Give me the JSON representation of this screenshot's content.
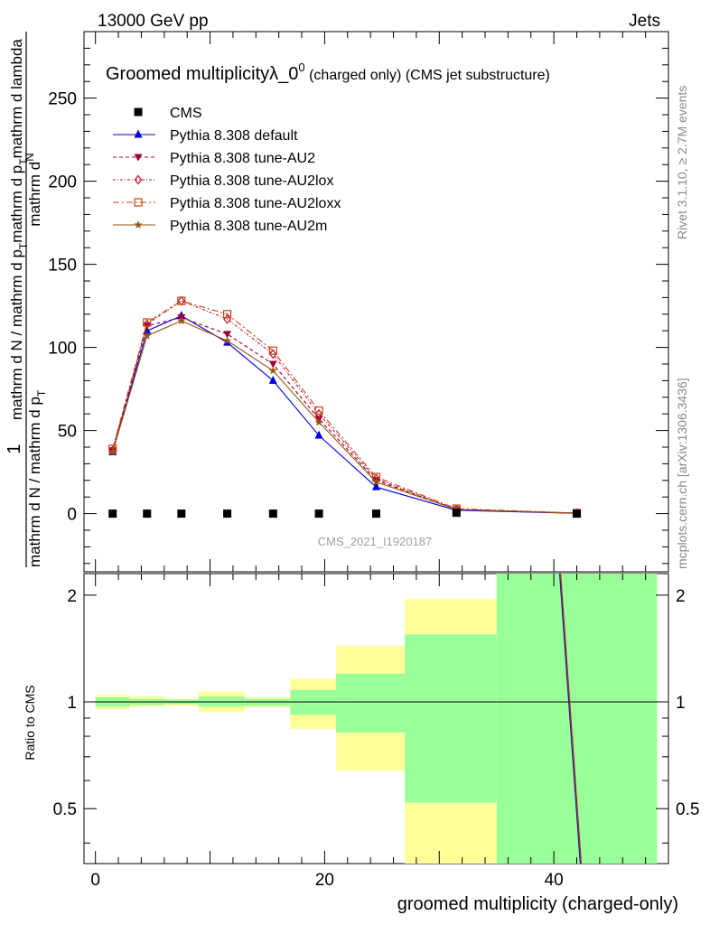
{
  "header": {
    "energy": "13000 GeV pp",
    "process": "Jets",
    "right_meta_1": "Rivet 3.1.10, ≥ 2.7M events",
    "right_meta_2": "mcplots.cern.ch [arXiv:1306.3436]",
    "watermark": "CMS_2021_I1920187"
  },
  "chart_data": {
    "title_main": "Groomed multiplicityλ_0",
    "title_sup": "0",
    "title_sub": " (charged only) (CMS jet substructure)",
    "ylabel_pre": "1",
    "ylabel_denominator": "mathrm d N / mathrm d p",
    "ylabel_denominator_T": "T",
    "ylabel_denominator_2": "mathrm d p",
    "ylabel_numerator_2": "mathrm d",
    "ylabel_numerator_N": "N",
    "ylabel_main": "mathrm d N / mathrm d p",
    "ylabel_main_2": "mathrm d p",
    "ylabel_main_3": "mathrm d lambda",
    "ratio_ylabel": "Ratio to CMS",
    "xlabel": "groomed multiplicity (charged-only)",
    "xlim": [
      -1,
      50
    ],
    "ylim": [
      -35,
      290
    ],
    "ratio_ylim": [
      0.35,
      2.3
    ],
    "x_ticks": [
      "0",
      "20",
      "40"
    ],
    "y_ticks": [
      "0",
      "50",
      "100",
      "150",
      "200",
      "250"
    ],
    "ratio_ticks": [
      "0.5",
      "1",
      "2"
    ],
    "bins": [
      {
        "lo": 0,
        "hi": 3,
        "center": 1.5
      },
      {
        "lo": 3,
        "hi": 6,
        "center": 4.5
      },
      {
        "lo": 6,
        "hi": 9,
        "center": 7.5
      },
      {
        "lo": 9,
        "hi": 13,
        "center": 11.5
      },
      {
        "lo": 13,
        "hi": 17,
        "center": 15.5
      },
      {
        "lo": 17,
        "hi": 21,
        "center": 19.5
      },
      {
        "lo": 21,
        "hi": 27,
        "center": 24.5
      },
      {
        "lo": 27,
        "hi": 35,
        "center": 31.5
      },
      {
        "lo": 35,
        "hi": 49,
        "center": 42
      }
    ],
    "cms": [
      0,
      0,
      0,
      0,
      0,
      0,
      0,
      0.5,
      0
    ],
    "series": [
      {
        "name": "Pythia 8.308 default",
        "color": "#0000dd",
        "marker": "triangle-up",
        "dash": "",
        "values": [
          37,
          110,
          119,
          103,
          80,
          47,
          16,
          2,
          0.2
        ]
      },
      {
        "name": "Pythia 8.308 tune-AU2",
        "color": "#990033",
        "marker": "triangle-down",
        "dash": "4,3",
        "values": [
          38,
          113,
          118,
          108,
          90,
          57,
          20,
          2.5,
          0.2
        ]
      },
      {
        "name": "Pythia 8.308 tune-AU2lox",
        "color": "#bb1133",
        "marker": "diamond",
        "dash": "3,2,1,2",
        "values": [
          38,
          114,
          128,
          117,
          96,
          60,
          21,
          2.5,
          0.3
        ]
      },
      {
        "name": "Pythia 8.308 tune-AU2loxx",
        "color": "#cc4411",
        "marker": "square-open",
        "dash": "7,3,2,3",
        "values": [
          39,
          115,
          128,
          120,
          98,
          62,
          22,
          3,
          0.3
        ]
      },
      {
        "name": "Pythia 8.308 tune-AU2m",
        "color": "#995511",
        "marker": "star",
        "dash": "",
        "values": [
          37,
          107,
          116,
          104,
          86,
          55,
          19,
          2.5,
          0.3
        ]
      }
    ],
    "legend_cms": "CMS",
    "ratio_bands": [
      {
        "lo": 0,
        "hi": 3,
        "g": [
          0.97,
          1.03
        ],
        "y": [
          0.955,
          1.045
        ]
      },
      {
        "lo": 3,
        "hi": 6,
        "g": [
          0.98,
          1.02
        ],
        "y": [
          0.97,
          1.035
        ]
      },
      {
        "lo": 6,
        "hi": 9,
        "g": [
          0.985,
          1.015
        ],
        "y": [
          0.975,
          1.02
        ]
      },
      {
        "lo": 9,
        "hi": 13,
        "g": [
          0.97,
          1.035
        ],
        "y": [
          0.935,
          1.07
        ]
      },
      {
        "lo": 13,
        "hi": 17,
        "g": [
          0.975,
          1.02
        ],
        "y": [
          0.965,
          1.03
        ]
      },
      {
        "lo": 17,
        "hi": 21,
        "g": [
          0.92,
          1.08
        ],
        "y": [
          0.84,
          1.16
        ]
      },
      {
        "lo": 21,
        "hi": 27,
        "g": [
          0.82,
          1.2
        ],
        "y": [
          0.64,
          1.44
        ]
      },
      {
        "lo": 27,
        "hi": 35,
        "g": [
          0.52,
          1.55
        ],
        "y": [
          0.35,
          1.95
        ]
      },
      {
        "lo": 35,
        "hi": 49,
        "g": [
          0.35,
          2.3
        ],
        "y": [
          0.35,
          2.3
        ]
      }
    ],
    "ratio_line": [
      [
        40.5,
        2.3
      ],
      [
        42.3,
        0.35
      ]
    ],
    "ratio_line_color": "#993322"
  }
}
